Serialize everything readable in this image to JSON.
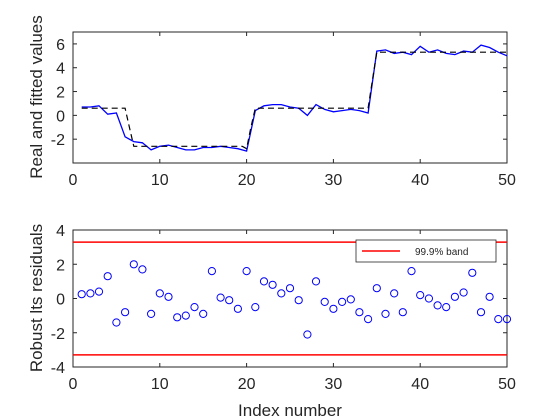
{
  "chart_data": [
    {
      "type": "line",
      "title": "",
      "xlabel": "",
      "ylabel": "Real and fitted values",
      "xlim": [
        0,
        50
      ],
      "ylim": [
        -4,
        7
      ],
      "xticks": [
        0,
        10,
        20,
        30,
        40,
        50
      ],
      "yticks": [
        -2,
        0,
        2,
        4,
        6
      ],
      "grid": false,
      "series": [
        {
          "role": "real",
          "style": "solid",
          "color": "#0000ff",
          "x": [
            1,
            2,
            3,
            4,
            5,
            6,
            7,
            8,
            9,
            10,
            11,
            12,
            13,
            14,
            15,
            16,
            17,
            18,
            19,
            20,
            21,
            22,
            23,
            24,
            25,
            26,
            27,
            28,
            29,
            30,
            31,
            32,
            33,
            34,
            35,
            36,
            37,
            38,
            39,
            40,
            41,
            42,
            43,
            44,
            45,
            46,
            47,
            48,
            49,
            50
          ],
          "y": [
            0.7,
            0.7,
            0.8,
            0.1,
            0.2,
            -1.8,
            -2.2,
            -2.3,
            -2.9,
            -2.6,
            -2.5,
            -2.7,
            -2.9,
            -2.9,
            -2.7,
            -2.7,
            -2.6,
            -2.7,
            -2.8,
            -3.0,
            0.4,
            0.8,
            0.9,
            0.9,
            0.7,
            0.6,
            0.0,
            0.9,
            0.5,
            0.3,
            0.4,
            0.5,
            0.4,
            0.2,
            5.4,
            5.5,
            5.2,
            5.3,
            5.1,
            5.8,
            5.3,
            5.5,
            5.2,
            5.1,
            5.4,
            5.3,
            5.9,
            5.7,
            5.3,
            5.0
          ]
        },
        {
          "role": "fitted",
          "style": "dashed",
          "color": "#000000",
          "x": [
            1,
            6,
            6.5,
            7,
            19.5,
            20,
            20.5,
            21,
            34,
            34.5,
            35,
            50
          ],
          "y": [
            0.6,
            0.6,
            -1.0,
            -2.6,
            -2.6,
            -2.8,
            -1.0,
            0.6,
            0.6,
            3.0,
            5.3,
            5.3
          ]
        }
      ]
    },
    {
      "type": "scatter",
      "title": "",
      "xlabel": "Index number",
      "ylabel": "Robust lts residuals",
      "xlim": [
        0,
        50
      ],
      "ylim": [
        -4,
        4
      ],
      "xticks": [
        0,
        10,
        20,
        30,
        40,
        50
      ],
      "yticks": [
        -4,
        -2,
        0,
        2,
        4
      ],
      "grid": false,
      "legend_position": "top-right",
      "bands": [
        {
          "name": "99.9% band",
          "values": [
            3.29,
            -3.29
          ],
          "color": "#ff0000"
        }
      ],
      "series": [
        {
          "role": "residuals",
          "marker": "circle",
          "color": "#0000ff",
          "x": [
            1,
            2,
            3,
            4,
            5,
            6,
            7,
            8,
            9,
            10,
            11,
            12,
            13,
            14,
            15,
            16,
            17,
            18,
            19,
            20,
            21,
            22,
            23,
            24,
            25,
            26,
            27,
            28,
            29,
            30,
            31,
            32,
            33,
            34,
            35,
            36,
            37,
            38,
            39,
            40,
            41,
            42,
            43,
            44,
            45,
            46,
            47,
            48,
            49,
            50
          ],
          "y": [
            0.25,
            0.3,
            0.4,
            1.3,
            -1.4,
            -0.8,
            2.0,
            1.7,
            -0.9,
            0.3,
            0.1,
            -1.1,
            -1.0,
            -0.5,
            -0.9,
            1.6,
            0.05,
            -0.1,
            -0.6,
            1.6,
            -0.5,
            1.0,
            0.8,
            0.3,
            0.6,
            -0.1,
            -2.1,
            1.0,
            -0.2,
            -0.6,
            -0.2,
            -0.05,
            -0.8,
            -1.2,
            0.6,
            -0.9,
            0.3,
            -0.8,
            1.6,
            0.2,
            0.0,
            -0.4,
            -0.5,
            0.1,
            0.35,
            1.5,
            -0.8,
            0.1,
            -1.2,
            -1.2
          ]
        }
      ]
    }
  ]
}
